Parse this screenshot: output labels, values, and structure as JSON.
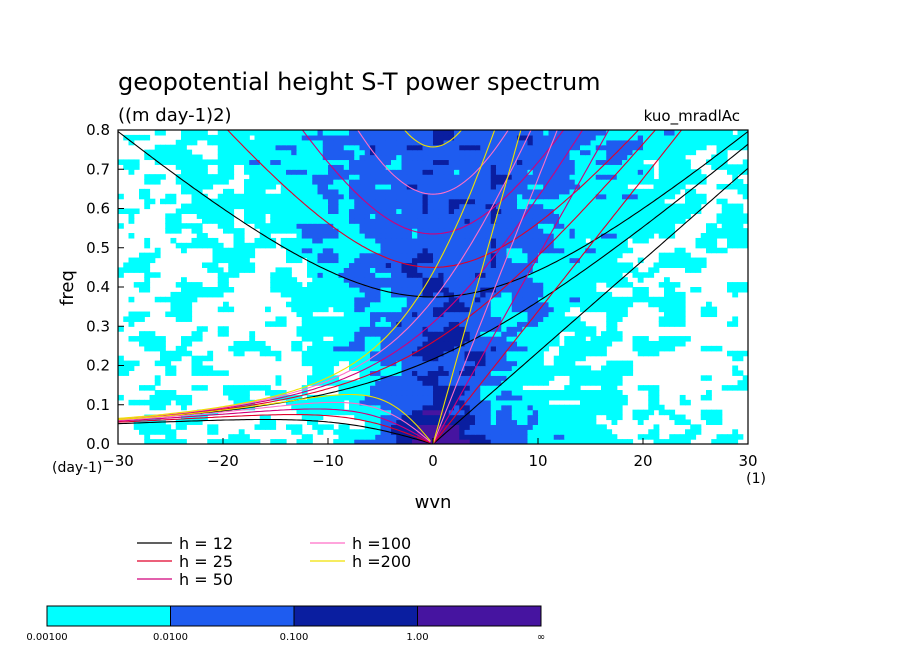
{
  "chart_data": {
    "type": "heatmap",
    "title": "geopotential height S-T power spectrum",
    "subtitle": "((m day-1)2)",
    "run_label": "kuo_mradlAc",
    "xlabel": "wvn",
    "ylabel": "freq",
    "x_unit": "(1)",
    "y_unit": "(day-1)",
    "xlim": [
      -30,
      30
    ],
    "ylim": [
      0,
      0.8
    ],
    "x_ticks": [
      -30,
      -20,
      -10,
      0,
      10,
      20,
      30
    ],
    "x_tick_labels": [
      "−30",
      "−20",
      "−10",
      "0",
      "10",
      "20",
      "30"
    ],
    "y_ticks": [
      0,
      0.1,
      0.2,
      0.3,
      0.4,
      0.5,
      0.6,
      0.7,
      0.8
    ],
    "y_tick_labels": [
      "0.0",
      "0.1",
      "0.2",
      "0.3",
      "0.4",
      "0.5",
      "0.6",
      "0.7",
      "0.8"
    ],
    "contour_levels": [
      0.001,
      0.01,
      0.1,
      1.0
    ],
    "colorbar": {
      "labels": [
        "0.00100",
        "0.0100",
        "0.100",
        "1.00",
        "∞"
      ],
      "colors": [
        "#00ffff",
        "#1e5cf0",
        "#0a1ea0",
        "#4614a0"
      ]
    },
    "dispersion_curves": [
      {
        "name": "h = 12",
        "h": 12,
        "color": "#000000"
      },
      {
        "name": "h = 25",
        "h": 25,
        "color": "#e0002a"
      },
      {
        "name": "h = 50",
        "h": 50,
        "color": "#d0007a"
      },
      {
        "name": "h =100",
        "h": 100,
        "color": "#ff6ec8"
      },
      {
        "name": "h =200",
        "h": 200,
        "color": "#f0e000"
      }
    ],
    "legend_placement": "below plot"
  }
}
